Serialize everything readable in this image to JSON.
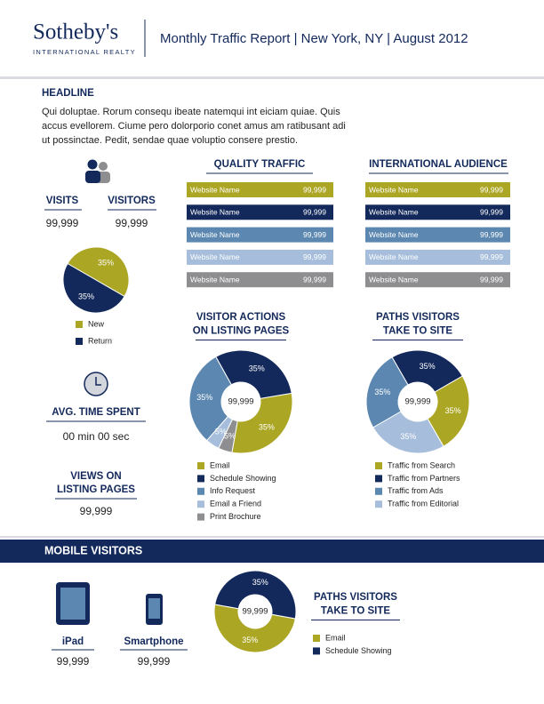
{
  "header": {
    "brand": "Sotheby's",
    "brand_sub": "INTERNATIONAL REALTY",
    "title": "Monthly Traffic Report | New York, NY | August 2012"
  },
  "headline": {
    "title": "HEADLINE",
    "body": "Qui doluptae. Rorum consequ ibeate natemqui int eiciam quiae. Quis accus evellorem. Ciume pero dolorporio conet amus am ratibusant adi ut possinctae. Pedit, sendae quae voluptio consere prestio."
  },
  "visits": {
    "visits_label": "VISITS",
    "visits_value": "99,999",
    "visitors_label": "VISITORS",
    "visitors_value": "99,999"
  },
  "time": {
    "label": "AVG. TIME SPENT",
    "value": "00 min 00 sec"
  },
  "views": {
    "label": [
      "VIEWS ON",
      "LISTING PAGES"
    ],
    "value": "99,999"
  },
  "mobile": {
    "title": "MOBILE VISITORS",
    "ipad_label": "iPad",
    "ipad_value": "99,999",
    "phone_label": "Smartphone",
    "phone_value": "99,999"
  },
  "chart_data": [
    {
      "type": "pie",
      "categories": [
        "New",
        "Return"
      ],
      "values": [
        35,
        35
      ],
      "value_labels": [
        "35%",
        "35%"
      ],
      "colors": [
        "#aca625",
        "#13295b"
      ]
    },
    {
      "type": "bar",
      "title": "QUALITY TRAFFIC",
      "categories": [
        "Website Name",
        "Website Name",
        "Website Name",
        "Website Name",
        "Website Name"
      ],
      "values": [
        99999,
        99999,
        99999,
        99999,
        99999
      ],
      "value_labels": [
        "99,999",
        "99,999",
        "99,999",
        "99,999",
        "99,999"
      ],
      "colors": [
        "#aca625",
        "#13295b",
        "#5b87b0",
        "#a6bedb",
        "#8e8e90"
      ]
    },
    {
      "type": "bar",
      "title": "INTERNATIONAL AUDIENCE",
      "categories": [
        "Website Name",
        "Website Name",
        "Website Name",
        "Website Name",
        "Website Name"
      ],
      "values": [
        99999,
        99999,
        99999,
        99999,
        99999
      ],
      "value_labels": [
        "99,999",
        "99,999",
        "99,999",
        "99,999",
        "99,999"
      ],
      "colors": [
        "#aca625",
        "#13295b",
        "#5b87b0",
        "#a6bedb",
        "#8e8e90"
      ]
    },
    {
      "type": "donut",
      "title": [
        "VISITOR ACTIONS",
        "ON LISTING PAGES"
      ],
      "center_label": "99,999",
      "categories": [
        "Email",
        "Schedule Showing",
        "Info Request",
        "Email a Friend",
        "Print Brochure"
      ],
      "values": [
        35,
        35,
        35,
        5,
        5
      ],
      "value_labels": [
        "35%",
        "35%",
        "35%",
        "5%",
        "5%"
      ],
      "colors": [
        "#aca625",
        "#13295b",
        "#5b87b0",
        "#a6bedb",
        "#8e8e90"
      ]
    },
    {
      "type": "donut",
      "title": [
        "PATHS VISITORS",
        "TAKE TO SITE"
      ],
      "center_label": "99,999",
      "categories": [
        "Traffic from Search",
        "Traffic from Partners",
        "Traffic from Ads",
        "Traffic from Editorial"
      ],
      "values": [
        35,
        35,
        35,
        35
      ],
      "value_labels": [
        "35%",
        "35%",
        "35%",
        "35%"
      ],
      "colors": [
        "#aca625",
        "#13295b",
        "#5b87b0",
        "#a6bedb"
      ]
    },
    {
      "type": "donut",
      "title": [
        "PATHS VISITORS",
        "TAKE TO SITE"
      ],
      "center_label": "99,999",
      "categories": [
        "Email",
        "Schedule Showing"
      ],
      "values": [
        35,
        35
      ],
      "value_labels": [
        "35%",
        "35%"
      ],
      "colors": [
        "#aca625",
        "#13295b"
      ]
    }
  ]
}
